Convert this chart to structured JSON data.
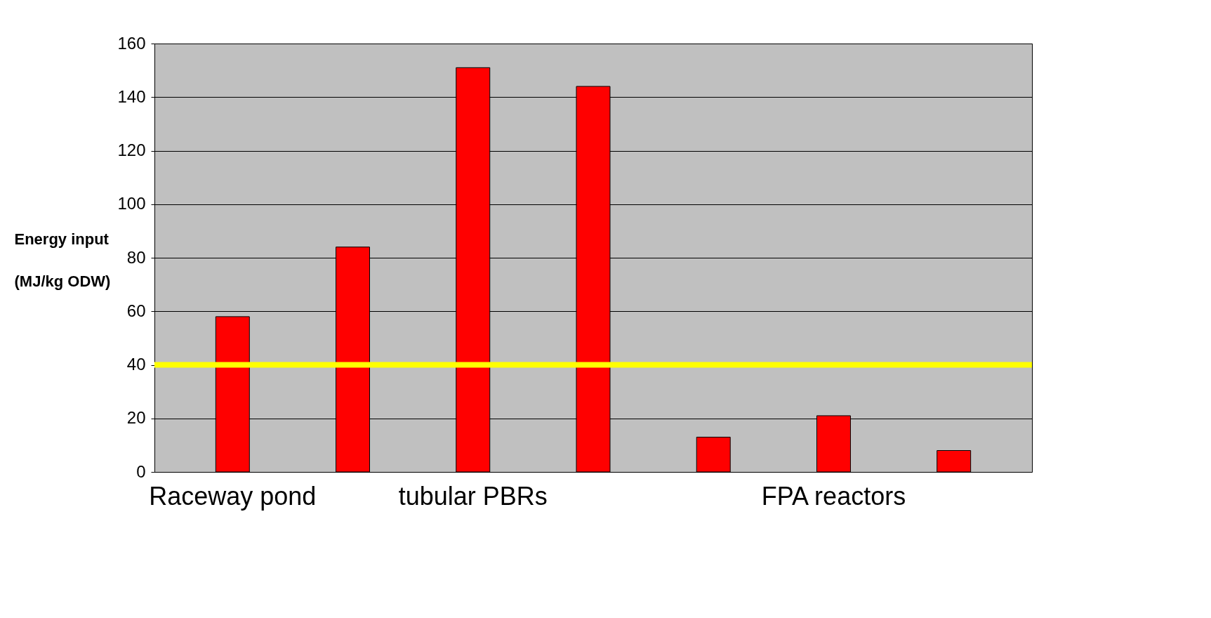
{
  "chart_data": {
    "type": "bar",
    "ylabel": "Energy input (MJ/kg ODW)",
    "categories": [
      "Raceway pond",
      null,
      "tubular PBRs",
      null,
      null,
      "FPA reactors",
      null
    ],
    "values": [
      58,
      84,
      151,
      144,
      13,
      21,
      8
    ],
    "color": "#ff0000",
    "ylim": [
      0,
      160
    ],
    "yticks": [
      0,
      20,
      40,
      60,
      80,
      100,
      120,
      140,
      160
    ],
    "grid": "y",
    "ref_lines": [
      {
        "axis": "y",
        "value": 40,
        "color": "#ffff00"
      }
    ]
  }
}
